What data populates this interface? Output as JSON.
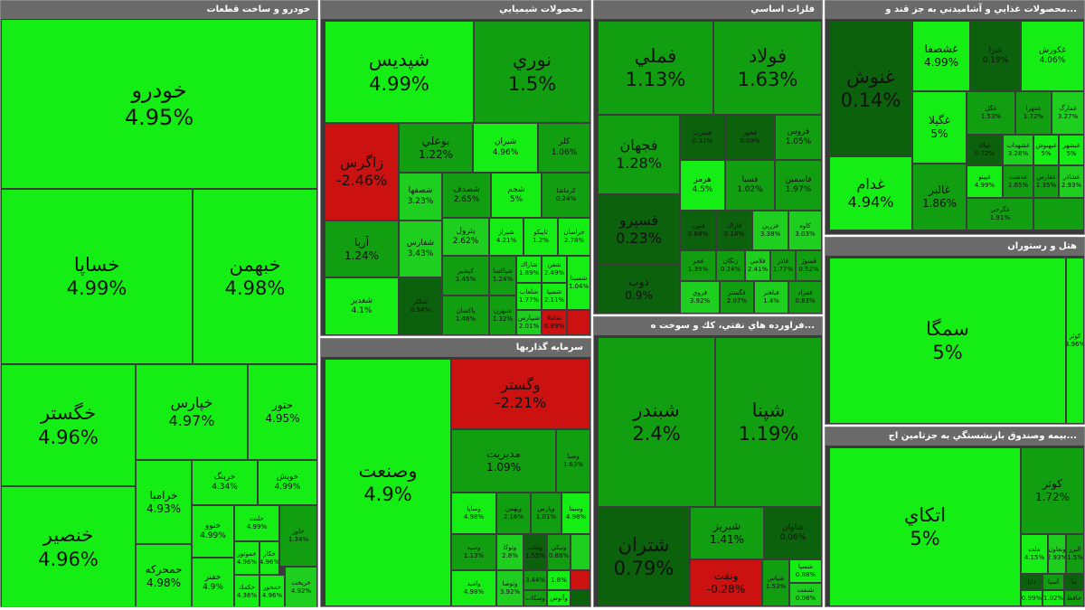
{
  "panels": {
    "auto": {
      "title": "خودرو و ساخت قطعات",
      "tiles": {
        "khodro": {
          "name": "خودرو",
          "pct": "4.95%"
        },
        "khsapa": {
          "name": "خساپا",
          "pct": "4.99%"
        },
        "khbahman": {
          "name": "خبهمن",
          "pct": "4.98%"
        },
        "khgostar": {
          "name": "خگستر",
          "pct": "4.96%"
        },
        "khpars": {
          "name": "خپارس",
          "pct": "4.97%"
        },
        "hetoor": {
          "name": "حتور",
          "pct": "4.95%"
        },
        "khansir": {
          "name": "خنصير",
          "pct": "4.96%"
        },
        "kharamba": {
          "name": "خرامبا",
          "pct": "4.93%"
        },
        "khazing": {
          "name": "خرينگ",
          "pct": "4.34%"
        },
        "khavis": {
          "name": "خويش",
          "pct": "4.99%"
        },
        "hamrakat": {
          "name": "حمحركه",
          "pct": "4.98%"
        },
        "khenoo": {
          "name": "خنوو",
          "pct": "4.99%"
        },
        "khazm": {
          "name": "خلنت",
          "pct": "4.99%"
        },
        "khajar": {
          "name": "خاور",
          "pct": "1.34%"
        },
        "khamr": {
          "name": "خفنر",
          "pct": "4.9%"
        },
        "s1": {
          "name": "خموتور",
          "pct": "4.96%"
        },
        "s2": {
          "name": "خكار",
          "pct": "4.96%"
        },
        "s3": {
          "name": "خكمك",
          "pct": "4.36%"
        },
        "s4": {
          "name": "خمحور",
          "pct": "4.96%"
        },
        "s5": {
          "name": "خريخت",
          "pct": "4.92%"
        }
      }
    },
    "chem": {
      "title": "محصولات شيميايي",
      "tiles": {
        "shapdis": {
          "name": "شپديس",
          "pct": "4.99%"
        },
        "noori": {
          "name": "نوري",
          "pct": "1.5%"
        },
        "zagros": {
          "name": "زاگرس",
          "pct": "-2.46%"
        },
        "booali": {
          "name": "بوعلي",
          "pct": "1.22%"
        },
        "shiran": {
          "name": "شيران",
          "pct": "4.96%"
        },
        "kaler": {
          "name": "كلر",
          "pct": "1.06%"
        },
        "shasmir": {
          "name": "شصفها",
          "pct": "3.23%"
        },
        "shasdf": {
          "name": "شصدف",
          "pct": "2.65%"
        },
        "shajam": {
          "name": "شجم",
          "pct": "5%"
        },
        "kerai": {
          "name": "كرماشا",
          "pct": "0.24%"
        },
        "arya": {
          "name": "آريا",
          "pct": "1.24%"
        },
        "shafars": {
          "name": "شفارس",
          "pct": "3.43%"
        },
        "paroil": {
          "name": "پترول",
          "pct": "2.62%"
        },
        "shiraz": {
          "name": "شيراز",
          "pct": "4.21%"
        },
        "tapiko": {
          "name": "تاپيكو",
          "pct": "1.2%"
        },
        "khorasan": {
          "name": "خراسان",
          "pct": "2.78%"
        },
        "shagadir": {
          "name": "شغدير",
          "pct": "4.1%"
        },
        "shakha": {
          "name": "شكلر",
          "pct": "0.94%"
        },
        "kavir": {
          "name": "كپشير",
          "pct": "1.45%"
        },
        "paksan": {
          "name": "پاكسان",
          "pct": "1.46%"
        },
        "s1": {
          "name": "شپاكسا",
          "pct": "1.24%"
        },
        "s2": {
          "name": "شاراك",
          "pct": "1.89%"
        },
        "s3": {
          "name": "شفن",
          "pct": "2.49%"
        },
        "s4": {
          "name": "شبهرن",
          "pct": "1.32%"
        },
        "s5": {
          "name": "شلعاب",
          "pct": "1.77%"
        },
        "s6": {
          "name": "شسپا",
          "pct": "2.11%"
        },
        "s7": {
          "name": "شسينا",
          "pct": "1.04%"
        },
        "s8": {
          "name": "شاملا",
          "pct": "0.89%"
        },
        "s9": {
          "name": "شيپارس",
          "pct": "2.01%"
        }
      }
    },
    "metal": {
      "title": "فلزات اساسي",
      "tiles": {
        "femeli": {
          "name": "فملي",
          "pct": "1.13%"
        },
        "foolad": {
          "name": "فولاد",
          "pct": "1.63%"
        },
        "fajahan": {
          "name": "فجهان",
          "pct": "1.28%"
        },
        "farvar": {
          "name": "فسرب",
          "pct": "0.31%"
        },
        "kaveh": {
          "name": "فخوز",
          "pct": "0.09%"
        },
        "foros": {
          "name": "فروس",
          "pct": "1.05%"
        },
        "hormoz": {
          "name": "هرمز",
          "pct": "4.5%"
        },
        "fasabz": {
          "name": "فسبا",
          "pct": "1.02%"
        },
        "fakhas": {
          "name": "فاسمين",
          "pct": "1.97%"
        },
        "fasrvar": {
          "name": "فسپرو",
          "pct": "0.23%"
        },
        "fanaft": {
          "name": "فنورد",
          "pct": "0.68%"
        },
        "zafar": {
          "name": "فاراك",
          "pct": "0.18%"
        },
        "fzar": {
          "name": "فزرين",
          "pct": "3.38%"
        },
        "kaveh2": {
          "name": "كاوه",
          "pct": "3.03%"
        },
        "fajar": {
          "name": "فجر",
          "pct": "1.39%"
        },
        "zanjan": {
          "name": "زنگان",
          "pct": "0.24%"
        },
        "dooveh": {
          "name": "ذوب",
          "pct": "0.9%"
        },
        "foroo": {
          "name": "فروي",
          "pct": "3.92%"
        },
        "s1": {
          "name": "فلامي",
          "pct": "2.41%"
        },
        "s2": {
          "name": "فاذر",
          "pct": "1.77%"
        },
        "s3": {
          "name": "فسوژ",
          "pct": "0.52%"
        },
        "s4": {
          "name": "فگستر",
          "pct": "2.07%"
        },
        "s5": {
          "name": "فباهنر",
          "pct": "1.4%"
        },
        "s6": {
          "name": "فمراد",
          "pct": "0.83%"
        }
      }
    },
    "food": {
      "title": "...محصولات غذايي و آشاميدني به جز قند و",
      "tiles": {
        "ghenoosh": {
          "name": "غنوش",
          "pct": "0.14%"
        },
        "ghasham": {
          "name": "غشصفا",
          "pct": "4.99%"
        },
        "ghbar": {
          "name": "غبرا",
          "pct": "0.19%"
        },
        "ghkoors": {
          "name": "غكورش",
          "pct": "4.06%"
        },
        "ghgela": {
          "name": "غگيلا",
          "pct": "5%"
        },
        "ghgol": {
          "name": "غگل",
          "pct": "1.53%"
        },
        "ghmehr": {
          "name": "غمهرا",
          "pct": "1.72%"
        },
        "ghzar": {
          "name": "غمارگ",
          "pct": "3.27%"
        },
        "ghdam": {
          "name": "غدام",
          "pct": "4.94%"
        },
        "ghaalbor": {
          "name": "غالبر",
          "pct": "1.86%"
        },
        "s1": {
          "name": "غپاك",
          "pct": "0.72%"
        },
        "s2": {
          "name": "غشهداب",
          "pct": "3.28%"
        },
        "s3": {
          "name": "غبهنوش",
          "pct": "5%"
        },
        "s4": {
          "name": "غپينو",
          "pct": "4.99%"
        },
        "s5": {
          "name": "غبشهر",
          "pct": "5%"
        },
        "s6": {
          "name": "غدشت",
          "pct": "1.65%"
        },
        "s7": {
          "name": "غفارس",
          "pct": "1.35%"
        },
        "s8": {
          "name": "غشاذر",
          "pct": "2.93%"
        },
        "s9": {
          "name": "غگرجي",
          "pct": "1.91%"
        }
      }
    },
    "hotel": {
      "title": "هتل و رستوران",
      "tiles": {
        "samga": {
          "name": "سمگا",
          "pct": "5%"
        },
        "koor": {
          "name": "كوثر",
          "pct": "4.96%"
        }
      }
    },
    "invest": {
      "title": "سرمايه گذاريها",
      "tiles": {
        "vasanat": {
          "name": "وصنعت",
          "pct": "4.9%"
        },
        "vgostar": {
          "name": "وگستر",
          "pct": "-2.21%"
        },
        "modiriat": {
          "name": "مديريت",
          "pct": "1.09%"
        },
        "vsaba": {
          "name": "وصبا",
          "pct": "1.63%"
        },
        "vsapa": {
          "name": "وساپا",
          "pct": "4.98%"
        },
        "vbahman": {
          "name": "وبهمن",
          "pct": "2.16%"
        },
        "vparsat": {
          "name": "وپارس",
          "pct": "1.01%"
        },
        "vsina": {
          "name": "وسينا",
          "pct": "4.98%"
        },
        "vsepeh": {
          "name": "وسپه",
          "pct": "1.13%"
        },
        "vsakhand": {
          "name": "وتوكا",
          "pct": "2.8%"
        },
        "vamid": {
          "name": "واميد",
          "pct": "4.98%"
        },
        "vgardesh": {
          "name": "وتوصا",
          "pct": "3.92%"
        },
        "s1": {
          "name": "وملت",
          "pct": "1.55%"
        },
        "s2": {
          "name": "ونيكي",
          "pct": "0.88%"
        },
        "s3": {
          "name": "وسكاب",
          "pct": "3.44%"
        },
        "s4": {
          "name": "وآتوس",
          "pct": "1.8%"
        }
      }
    },
    "refinery": {
      "title": "...فراورده هاي نفتي، كك و سوخت ه",
      "tiles": {
        "shabandar": {
          "name": "شبندر",
          "pct": "2.4%"
        },
        "shepna": {
          "name": "شپنا",
          "pct": "1.19%"
        },
        "shiran": {
          "name": "شتران",
          "pct": "0.79%"
        },
        "shabriz": {
          "name": "شبريز",
          "pct": "1.41%"
        },
        "shavan": {
          "name": "شاوان",
          "pct": "0.06%"
        },
        "venaft": {
          "name": "ونفت",
          "pct": "-0.28%"
        },
        "shapars": {
          "name": "شپاس",
          "pct": "1.53%"
        },
        "s1": {
          "name": "شسپا",
          "pct": "0.88%"
        },
        "s2": {
          "name": "شنفت",
          "pct": "0.08%"
        }
      }
    },
    "insurance": {
      "title": "...بيمه وصندوق بازنشستگي به جزتامين اج",
      "tiles": {
        "atkai": {
          "name": "اتكاي",
          "pct": "5%"
        },
        "kowsar": {
          "name": "كوثر",
          "pct": "1.72%"
        },
        "melat": {
          "name": "ملت",
          "pct": "4.15%"
        },
        "s1": {
          "name": "وتعاون",
          "pct": "2.93%"
        },
        "s2": {
          "name": "البرز",
          "pct": "1.5%"
        },
        "s3": {
          "name": "دانا",
          "pct": "0.99%"
        },
        "s4": {
          "name": "آسيا",
          "pct": "1.02%"
        },
        "s5": {
          "name": "ما",
          "pct": "0.95%"
        },
        "s6": {
          "name": "حافظ",
          "pct": "0.88%"
        }
      }
    }
  },
  "colors": {
    "strong_green": "#14ee14",
    "medium_green": "#119e11",
    "dark_green": "#0c610c",
    "red": "#cc1111",
    "header": "#6a6a6a"
  }
}
